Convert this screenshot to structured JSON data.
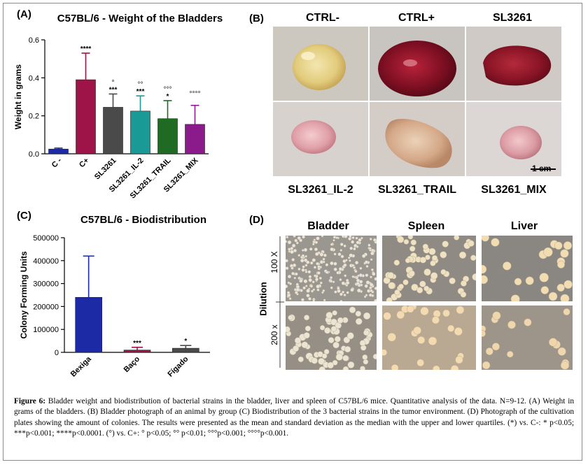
{
  "panelA": {
    "letter": "(A)",
    "chart_data": {
      "type": "bar",
      "title": "C57BL/6 - Weight of the Bladders",
      "ylabel": "Weight in grams",
      "xlabel": "",
      "ylim": [
        0,
        0.6
      ],
      "yticks": [
        "0.0",
        "0.2",
        "0.4",
        "0.6"
      ],
      "categories": [
        "C -",
        "C+",
        "SL3261",
        "SL3261_IL-2",
        "SL3261_TRAIL",
        "SL3261_MIX"
      ],
      "values": [
        0.025,
        0.39,
        0.245,
        0.225,
        0.185,
        0.155
      ],
      "error_upper": [
        0.03,
        0.53,
        0.315,
        0.305,
        0.28,
        0.255
      ],
      "sig_vs_neg": [
        "",
        "****",
        "***",
        "***",
        "*",
        ""
      ],
      "sig_vs_pos": [
        "",
        "",
        "°",
        "°°",
        "°°°",
        "°°°°"
      ],
      "colors": [
        "#1c2aa6",
        "#9e1348",
        "#4a4a4a",
        "#1a9a97",
        "#1f6b23",
        "#8b1a8b"
      ],
      "grid": false,
      "legend": "none"
    }
  },
  "panelB": {
    "letter": "(B)",
    "top_labels": [
      "CTRL-",
      "CTRL+",
      "SL3261"
    ],
    "bottom_labels": [
      "SL3261_IL-2",
      "SL3261_TRAIL",
      "SL3261_MIX"
    ],
    "scale_bar": "1 cm"
  },
  "panelC": {
    "letter": "(C)",
    "chart_data": {
      "type": "bar",
      "title": "C57BL/6 - Biodistribution",
      "ylabel": "Colony Forming Units",
      "xlabel": "",
      "ylim": [
        0,
        500000
      ],
      "yticks": [
        "0",
        "100000",
        "200000",
        "300000",
        "400000",
        "500000"
      ],
      "categories": [
        "Bexiga",
        "Baço",
        "Fígado"
      ],
      "values": [
        240000,
        10000,
        18000
      ],
      "error_upper": [
        420000,
        22000,
        30000
      ],
      "significance": [
        "",
        "***",
        "*"
      ],
      "colors": [
        "#1c2aa6",
        "#9e1348",
        "#4a4a4a"
      ],
      "grid": false,
      "legend": "none"
    }
  },
  "panelD": {
    "letter": "(D)",
    "columns": [
      "Bladder",
      "Spleen",
      "Liver"
    ],
    "axis_label": "Dilution",
    "rows": [
      "100 X",
      "200 x"
    ]
  },
  "caption": {
    "figure_label": "Figure 6:",
    "text": "Bladder weight and biodistribution of bacterial strains in the bladder, liver and spleen of C57BL/6 mice. Quantitative analysis of the data. N=9-12. (A) Weight in grams of the bladders. (B) Bladder photograph of an animal by group (C) Biodistribution of the 3 bacterial strains in the tumor environment. (D) Photograph of the cultivation plates showing the amount of colonies.  The results were presented as the mean and standard deviation as the median with the upper and lower quartiles. (*) vs. C-: * p<0.05; ***p<0.001; ****p<0.0001. (°) vs. C+: ° p<0.05; °° p<0.01; °°°p<0.001; °°°°p<0.001."
  }
}
